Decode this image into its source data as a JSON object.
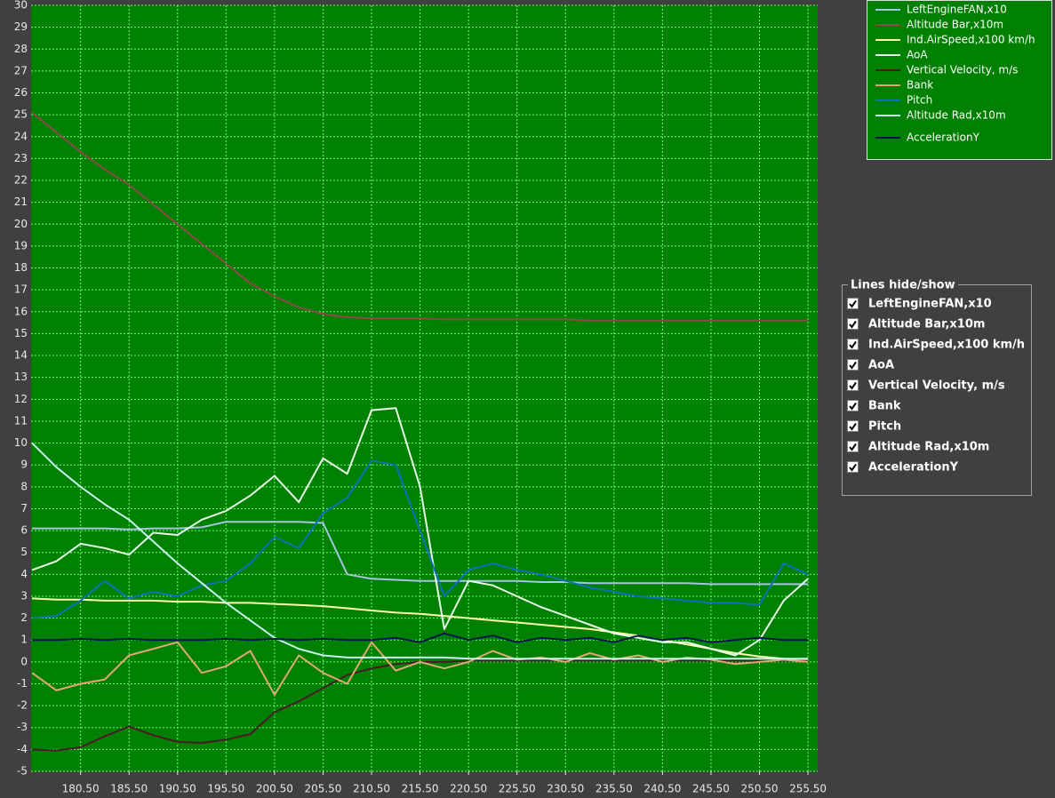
{
  "chart_data": {
    "type": "line",
    "x": [
      175.5,
      178,
      180.5,
      183,
      185.5,
      188,
      190.5,
      193,
      195.5,
      198,
      200.5,
      203,
      205.5,
      208,
      210.5,
      213,
      215.5,
      218,
      220.5,
      223,
      225.5,
      228,
      230.5,
      233,
      235.5,
      238,
      240.5,
      243,
      245.5,
      248,
      250.5,
      253,
      255.5
    ],
    "xlim": [
      175.4,
      256.5
    ],
    "xticks": [
      {
        "value": 180.5,
        "label": "180.50"
      },
      {
        "value": 185.5,
        "label": "185.50"
      },
      {
        "value": 190.5,
        "label": "190.50"
      },
      {
        "value": 195.5,
        "label": "195.50"
      },
      {
        "value": 200.5,
        "label": "200.50"
      },
      {
        "value": 205.5,
        "label": "205.50"
      },
      {
        "value": 210.5,
        "label": "210.50"
      },
      {
        "value": 215.5,
        "label": "215.50"
      },
      {
        "value": 220.5,
        "label": "220.50"
      },
      {
        "value": 225.5,
        "label": "225.50"
      },
      {
        "value": 230.5,
        "label": "230.50"
      },
      {
        "value": 235.5,
        "label": "235.50"
      },
      {
        "value": 240.5,
        "label": "240.50"
      },
      {
        "value": 245.5,
        "label": "245.50"
      },
      {
        "value": 250.5,
        "label": "250.50"
      },
      {
        "value": 255.5,
        "label": "255.50"
      }
    ],
    "ylim": [
      -5,
      30
    ],
    "yticks": [
      -5,
      -4,
      -3,
      -2,
      -1,
      0,
      1,
      2,
      3,
      4,
      5,
      6,
      7,
      8,
      9,
      10,
      11,
      12,
      13,
      14,
      15,
      16,
      17,
      18,
      19,
      20,
      21,
      22,
      23,
      24,
      25,
      26,
      27,
      28,
      29,
      30
    ],
    "grid": true,
    "legend": "top-right",
    "series": [
      {
        "name": "LeftEngineFAN,x10",
        "color": "#a8c4e4",
        "values": [
          6.1,
          6.1,
          6.1,
          6.1,
          6.05,
          6.1,
          6.1,
          6.15,
          6.4,
          6.4,
          6.4,
          6.4,
          6.35,
          4.0,
          3.8,
          3.75,
          3.7,
          3.7,
          3.7,
          3.7,
          3.7,
          3.65,
          3.65,
          3.6,
          3.6,
          3.6,
          3.6,
          3.6,
          3.55,
          3.55,
          3.55,
          3.55,
          3.55
        ]
      },
      {
        "name": "Altitude Bar,x10m",
        "color": "#8b4a4a",
        "values": [
          25.1,
          24.2,
          23.3,
          22.5,
          21.8,
          20.9,
          20.0,
          19.1,
          18.2,
          17.3,
          16.7,
          16.2,
          15.9,
          15.75,
          15.7,
          15.7,
          15.7,
          15.65,
          15.65,
          15.65,
          15.65,
          15.65,
          15.65,
          15.6,
          15.6,
          15.6,
          15.6,
          15.6,
          15.6,
          15.6,
          15.6,
          15.6,
          15.6
        ]
      },
      {
        "name": "Ind.AirSpeed,x100 km/h",
        "color": "#ffffb0",
        "values": [
          2.9,
          2.85,
          2.85,
          2.8,
          2.8,
          2.8,
          2.75,
          2.75,
          2.7,
          2.7,
          2.65,
          2.6,
          2.55,
          2.45,
          2.35,
          2.25,
          2.2,
          2.1,
          2.0,
          1.9,
          1.8,
          1.7,
          1.6,
          1.5,
          1.35,
          1.2,
          1.0,
          0.8,
          0.6,
          0.4,
          0.25,
          0.15,
          0.1
        ]
      },
      {
        "name": "AoA",
        "color": "#e8ffe8",
        "values": [
          4.2,
          4.6,
          5.4,
          5.2,
          4.9,
          5.9,
          5.8,
          6.5,
          6.9,
          7.6,
          8.5,
          7.3,
          9.3,
          8.6,
          11.5,
          11.6,
          8.0,
          1.5,
          3.7,
          3.5,
          3.0,
          2.5,
          2.1,
          1.7,
          1.3,
          1.1,
          0.9,
          0.9,
          0.6,
          0.3,
          1.0,
          2.8,
          3.8
        ]
      },
      {
        "name": "Vertical Velocity, m/s",
        "color": "#4a1a2a",
        "values": [
          -4.0,
          -4.05,
          -3.9,
          -3.4,
          -2.95,
          -3.35,
          -3.65,
          -3.7,
          -3.55,
          -3.3,
          -2.3,
          -1.8,
          -1.2,
          -0.6,
          -0.3,
          -0.1,
          0.0,
          0.0,
          0.05,
          0.05,
          0.05,
          0.05,
          0.05,
          0.05,
          0.05,
          0.05,
          0.05,
          0.05,
          0.05,
          0.05,
          0.05,
          0.05,
          0.05
        ]
      },
      {
        "name": "Bank",
        "color": "#e0a878",
        "values": [
          -0.5,
          -1.3,
          -1.0,
          -0.8,
          0.3,
          0.6,
          0.9,
          -0.5,
          -0.2,
          0.5,
          -1.5,
          0.3,
          -0.5,
          -1.0,
          0.9,
          -0.4,
          0.0,
          -0.3,
          0.0,
          0.5,
          0.1,
          0.2,
          0.0,
          0.4,
          0.1,
          0.3,
          0.0,
          0.2,
          0.1,
          -0.1,
          0.0,
          0.1,
          0.0
        ]
      },
      {
        "name": "Pitch",
        "color": "#1070b8",
        "values": [
          2.0,
          2.1,
          2.8,
          3.7,
          2.9,
          3.2,
          3.0,
          3.5,
          3.7,
          4.5,
          5.7,
          5.2,
          6.8,
          7.5,
          9.2,
          9.0,
          6.0,
          3.0,
          4.2,
          4.5,
          4.2,
          4.0,
          3.7,
          3.4,
          3.2,
          3.0,
          2.9,
          2.8,
          2.7,
          2.7,
          2.6,
          4.5,
          4.0
        ]
      },
      {
        "name": "Altitude Rad,x10m",
        "color": "#c8f4ec",
        "values": [
          10.0,
          8.9,
          8.0,
          7.2,
          6.5,
          5.5,
          4.5,
          3.6,
          2.7,
          1.9,
          1.1,
          0.6,
          0.3,
          0.2,
          0.2,
          0.2,
          0.2,
          0.2,
          0.15,
          0.15,
          0.15,
          0.15,
          0.15,
          0.15,
          0.15,
          0.15,
          0.15,
          0.15,
          0.15,
          0.15,
          0.15,
          0.15,
          0.15
        ]
      },
      {
        "name": "AccelerationY",
        "color": "#0a1450",
        "values": [
          1.0,
          1.0,
          1.05,
          1.0,
          1.05,
          1.0,
          1.0,
          1.0,
          1.05,
          1.0,
          1.05,
          1.0,
          1.05,
          1.0,
          1.0,
          1.1,
          0.9,
          1.3,
          1.0,
          1.2,
          0.9,
          1.1,
          1.0,
          1.1,
          0.9,
          1.2,
          1.0,
          1.1,
          0.9,
          1.0,
          1.1,
          1.0,
          1.0
        ]
      }
    ]
  },
  "panel": {
    "title": "Lines hide/show",
    "checked": true
  }
}
